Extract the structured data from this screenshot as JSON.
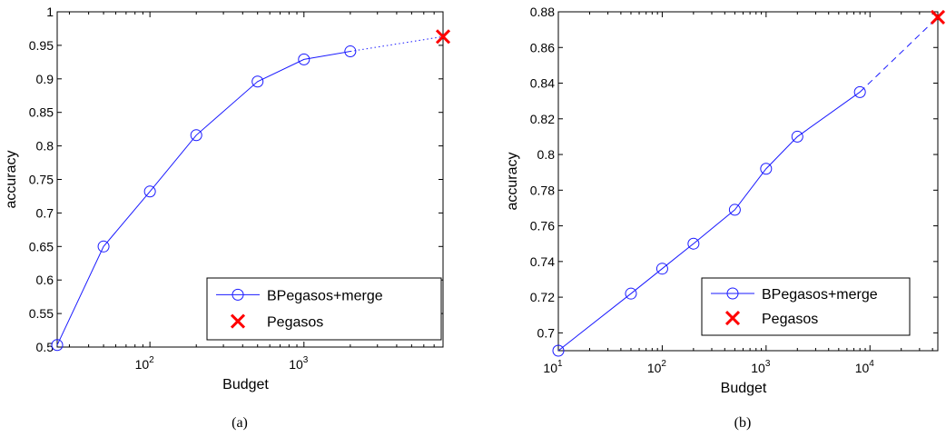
{
  "colors": {
    "series": "#1a1aff",
    "pegasos": "#ff0000",
    "axis": "#000000"
  },
  "chart_data": [
    {
      "type": "line",
      "caption": "(a)",
      "xlabel": "Budget",
      "ylabel": "accuracy",
      "x_scale": "log",
      "xlim": [
        25,
        8000
      ],
      "ylim": [
        0.5,
        1.0
      ],
      "x_ticks": [
        {
          "value": 100,
          "base": "10",
          "exp": "2"
        },
        {
          "value": 1000,
          "base": "10",
          "exp": "3"
        }
      ],
      "y_ticks": [
        0.5,
        0.55,
        0.6,
        0.65,
        0.7,
        0.75,
        0.8,
        0.85,
        0.9,
        0.95,
        1.0
      ],
      "y_tick_labels": [
        "0.5",
        "0.55",
        "0.6",
        "0.65",
        "0.7",
        "0.75",
        "0.8",
        "0.85",
        "0.9",
        "0.95",
        "1"
      ],
      "series": [
        {
          "name": "BPegasos+merge",
          "marker": "circle",
          "x": [
            25,
            50,
            100,
            200,
            500,
            1000,
            2000
          ],
          "y": [
            0.503,
            0.65,
            0.732,
            0.816,
            0.896,
            0.929,
            0.941
          ]
        },
        {
          "name": "Pegasos",
          "marker": "x",
          "x": [
            8000
          ],
          "y": [
            0.963
          ]
        }
      ],
      "connector": {
        "style": "dotted",
        "from": [
          2000,
          0.941
        ],
        "to": [
          8000,
          0.963
        ]
      },
      "legend": {
        "position": "bottom-right",
        "entries": [
          "BPegasos+merge",
          "Pegasos"
        ]
      },
      "grid": false
    },
    {
      "type": "line",
      "caption": "(b)",
      "xlabel": "Budget",
      "ylabel": "accuracy",
      "x_scale": "log",
      "xlim": [
        10,
        45000
      ],
      "ylim": [
        0.69,
        0.88
      ],
      "x_ticks": [
        {
          "value": 10,
          "base": "10",
          "exp": "1"
        },
        {
          "value": 100,
          "base": "10",
          "exp": "2"
        },
        {
          "value": 1000,
          "base": "10",
          "exp": "3"
        },
        {
          "value": 10000,
          "base": "10",
          "exp": "4"
        }
      ],
      "y_ticks": [
        0.7,
        0.72,
        0.74,
        0.76,
        0.78,
        0.8,
        0.82,
        0.84,
        0.86,
        0.88
      ],
      "y_tick_labels": [
        "0.7",
        "0.72",
        "0.74",
        "0.76",
        "0.78",
        "0.8",
        "0.82",
        "0.84",
        "0.86",
        "0.88"
      ],
      "series": [
        {
          "name": "BPegasos+merge",
          "marker": "circle",
          "x": [
            10,
            50,
            100,
            200,
            500,
            1000,
            2000,
            8000
          ],
          "y": [
            0.69,
            0.722,
            0.736,
            0.75,
            0.769,
            0.792,
            0.81,
            0.835
          ]
        },
        {
          "name": "Pegasos",
          "marker": "x",
          "x": [
            45000
          ],
          "y": [
            0.877
          ]
        }
      ],
      "connector": {
        "style": "dashed",
        "from": [
          8000,
          0.835
        ],
        "to": [
          45000,
          0.877
        ]
      },
      "legend": {
        "position": "bottom-right",
        "entries": [
          "BPegasos+merge",
          "Pegasos"
        ]
      },
      "grid": false
    }
  ]
}
